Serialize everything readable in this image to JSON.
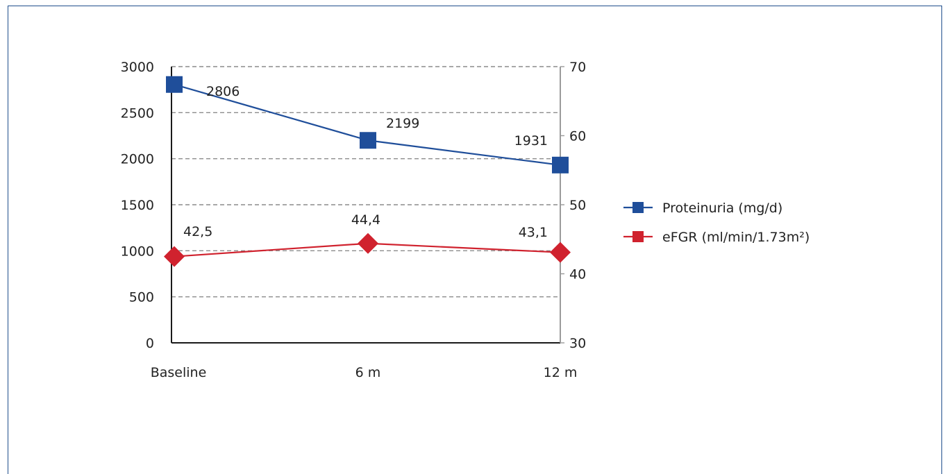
{
  "chart_data": {
    "type": "line",
    "categories": [
      "Baseline",
      "6 m",
      "12 m"
    ],
    "y_left": {
      "min": 0,
      "max": 3000,
      "step": 500,
      "ticks": [
        "0",
        "500",
        "1000",
        "1500",
        "2000",
        "2500",
        "3000"
      ]
    },
    "y_right": {
      "min": 30,
      "max": 70,
      "step": 10,
      "ticks": [
        "30",
        "40",
        "50",
        "60",
        "70"
      ]
    },
    "grid": "dashed-horizontal",
    "legend_position": "right",
    "series": [
      {
        "name": "Proteinuria (mg/d)",
        "axis": "left",
        "marker": "square",
        "color": "#1f4e9a",
        "values": [
          2806,
          2199,
          1931
        ],
        "labels": [
          "2806",
          "2199",
          "1931"
        ]
      },
      {
        "name": "eFGR (ml/min/1.73m²)",
        "axis": "right",
        "marker": "diamond",
        "color": "#d0222e",
        "values": [
          42.5,
          44.4,
          43.1
        ],
        "labels": [
          "42,5",
          "44,4",
          "43,1"
        ]
      }
    ]
  }
}
